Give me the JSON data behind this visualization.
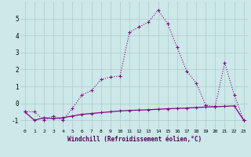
{
  "xlabel": "Windchill (Refroidissement éolien,°C)",
  "bg_color": "#cce8e8",
  "grid_color": "#aacccc",
  "line_color": "#880088",
  "line1_x": [
    0,
    1,
    2,
    3,
    4,
    5,
    6,
    7,
    8,
    9,
    10,
    11,
    12,
    13,
    14,
    15,
    16,
    17,
    18,
    19,
    20,
    21,
    22,
    23
  ],
  "line1_y": [
    -0.5,
    -0.5,
    -1.0,
    -0.75,
    -1.0,
    -0.3,
    0.5,
    0.75,
    1.4,
    1.55,
    1.6,
    4.2,
    4.5,
    4.8,
    5.5,
    4.7,
    3.3,
    1.9,
    1.2,
    -0.1,
    -0.2,
    2.4,
    0.5,
    -1.0
  ],
  "line2_x": [
    0,
    1,
    2,
    3,
    4,
    5,
    6,
    7,
    8,
    9,
    10,
    11,
    12,
    13,
    14,
    15,
    16,
    17,
    18,
    19,
    20,
    21,
    22,
    23
  ],
  "line2_y": [
    -0.5,
    -1.0,
    -0.85,
    -0.9,
    -0.85,
    -0.75,
    -0.65,
    -0.6,
    -0.55,
    -0.5,
    -0.45,
    -0.42,
    -0.4,
    -0.38,
    -0.35,
    -0.32,
    -0.3,
    -0.28,
    -0.25,
    -0.22,
    -0.2,
    -0.18,
    -0.15,
    -1.0
  ],
  "ylim": [
    -1.5,
    6.0
  ],
  "yticks": [
    -1,
    0,
    1,
    2,
    3,
    4,
    5
  ],
  "xticks": [
    0,
    1,
    2,
    3,
    4,
    5,
    6,
    7,
    8,
    9,
    10,
    11,
    12,
    13,
    14,
    15,
    16,
    17,
    18,
    19,
    20,
    21,
    22,
    23
  ],
  "marker": "+"
}
